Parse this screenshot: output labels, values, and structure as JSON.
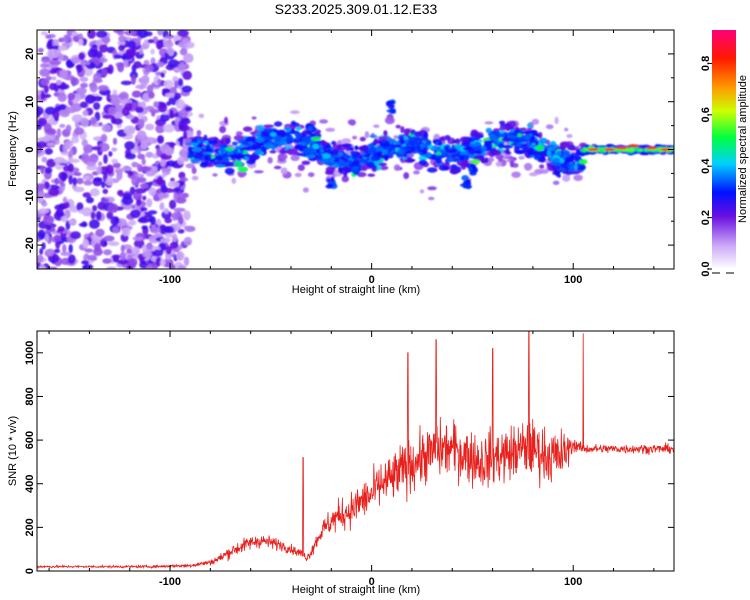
{
  "title": "S233.2025.309.01.12.E33",
  "colors": {
    "snr_line": "#e8201c",
    "background": "#ffffff",
    "axis": "#000000"
  },
  "chart_data": [
    {
      "type": "heatmap",
      "name": "spectrogram",
      "xlabel": "Height of straight line (km)",
      "ylabel": "Frequency (Hz)",
      "xlim": [
        -166,
        150
      ],
      "ylim": [
        -25,
        25
      ],
      "xticks": [
        -100,
        0,
        100
      ],
      "yticks": [
        -20,
        -10,
        0,
        10,
        20
      ],
      "colorbar": {
        "label": "Normalized spectral amplitude",
        "range": [
          0,
          0.93
        ],
        "ticks": [
          0.0,
          0.2,
          0.4,
          0.6,
          0.8
        ],
        "colormap": "rainbow (white-violet-blue-cyan-green-yellow-orange-red-magenta)"
      },
      "regions": [
        {
          "x_range": [
            -166,
            -90
          ],
          "description": "broadband noise spread over full frequency range",
          "amplitude_level": 0.1
        },
        {
          "x_range": [
            -90,
            105
          ],
          "description": "signal band near 0 Hz, spread about -8 to +5 Hz",
          "amplitude_level": 0.35
        },
        {
          "x_range": [
            105,
            150
          ],
          "description": "narrow strong band at about 0 Hz",
          "amplitude_level": 0.85
        }
      ]
    },
    {
      "type": "line",
      "name": "snr",
      "xlabel": "Height of straight line (km)",
      "ylabel": "SNR (10 * v/v)",
      "xlim": [
        -166,
        150
      ],
      "ylim": [
        0,
        1100
      ],
      "xticks": [
        -100,
        0,
        100
      ],
      "yticks": [
        0,
        200,
        400,
        600,
        800,
        1000
      ],
      "series": [
        {
          "name": "SNR envelope",
          "x": [
            -166,
            -150,
            -130,
            -110,
            -90,
            -80,
            -75,
            -70,
            -65,
            -60,
            -55,
            -50,
            -45,
            -40,
            -35,
            -32,
            -30,
            -25,
            -20,
            -15,
            -10,
            -5,
            0,
            5,
            10,
            15,
            20,
            25,
            30,
            35,
            40,
            45,
            50,
            55,
            60,
            65,
            70,
            75,
            80,
            85,
            90,
            95,
            100,
            105,
            110,
            120,
            130,
            140,
            150
          ],
          "values": [
            20,
            20,
            20,
            20,
            25,
            40,
            60,
            90,
            110,
            130,
            140,
            130,
            120,
            100,
            80,
            60,
            90,
            180,
            230,
            260,
            280,
            320,
            350,
            400,
            420,
            460,
            490,
            520,
            540,
            560,
            560,
            540,
            520,
            500,
            520,
            530,
            540,
            560,
            560,
            540,
            520,
            530,
            580,
            560,
            560,
            560,
            560,
            560,
            560
          ],
          "spread": [
            10,
            10,
            10,
            10,
            15,
            25,
            40,
            55,
            60,
            60,
            60,
            55,
            50,
            40,
            40,
            30,
            50,
            80,
            120,
            140,
            150,
            170,
            180,
            200,
            220,
            230,
            230,
            230,
            240,
            240,
            240,
            240,
            240,
            240,
            240,
            240,
            240,
            240,
            240,
            240,
            240,
            220,
            60,
            40,
            40,
            40,
            40,
            40,
            40
          ]
        }
      ],
      "peaks": [
        {
          "x": -34,
          "y": 520
        },
        {
          "x": 18,
          "y": 1000
        },
        {
          "x": 32,
          "y": 1060
        },
        {
          "x": 60,
          "y": 1020
        },
        {
          "x": 78,
          "y": 1100
        },
        {
          "x": 105,
          "y": 1090
        }
      ]
    }
  ]
}
